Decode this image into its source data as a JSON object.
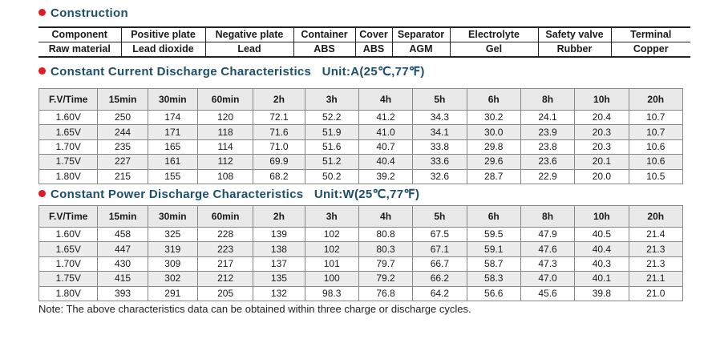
{
  "construction": {
    "title": "Construction",
    "headers": [
      "Component",
      "Positive plate",
      "Negative plate",
      "Container",
      "Cover",
      "Separator",
      "Electrolyte",
      "Safety valve",
      "Terminal"
    ],
    "row": [
      "Raw material",
      "Lead dioxide",
      "Lead",
      "ABS",
      "ABS",
      "AGM",
      "Gel",
      "Rubber",
      "Copper"
    ]
  },
  "current": {
    "title": "Constant Current Discharge Characteristics   Unit:A(25℃,77℉)",
    "headers": [
      "F.V/Time",
      "15min",
      "30min",
      "60min",
      "2h",
      "3h",
      "4h",
      "5h",
      "6h",
      "8h",
      "10h",
      "20h"
    ],
    "rows": [
      [
        "1.60V",
        "250",
        "174",
        "120",
        "72.1",
        "52.2",
        "41.2",
        "34.3",
        "30.2",
        "24.1",
        "20.4",
        "10.7"
      ],
      [
        "1.65V",
        "244",
        "171",
        "118",
        "71.6",
        "51.9",
        "41.0",
        "34.1",
        "30.0",
        "23.9",
        "20.3",
        "10.7"
      ],
      [
        "1.70V",
        "235",
        "165",
        "114",
        "71.0",
        "51.6",
        "40.7",
        "33.8",
        "29.8",
        "23.8",
        "20.3",
        "10.6"
      ],
      [
        "1.75V",
        "227",
        "161",
        "112",
        "69.9",
        "51.2",
        "40.4",
        "33.6",
        "29.6",
        "23.6",
        "20.1",
        "10.6"
      ],
      [
        "1.80V",
        "215",
        "155",
        "108",
        "68.2",
        "50.2",
        "39.2",
        "32.6",
        "28.7",
        "22.9",
        "20.0",
        "10.5"
      ]
    ]
  },
  "power": {
    "title": "Constant Power Discharge Characteristics   Unit:W(25℃,77℉)",
    "headers": [
      "F.V/Time",
      "15min",
      "30min",
      "60min",
      "2h",
      "3h",
      "4h",
      "5h",
      "6h",
      "8h",
      "10h",
      "20h"
    ],
    "rows": [
      [
        "1.60V",
        "458",
        "325",
        "228",
        "139",
        "102",
        "80.8",
        "67.5",
        "59.5",
        "47.9",
        "40.5",
        "21.4"
      ],
      [
        "1.65V",
        "447",
        "319",
        "223",
        "138",
        "102",
        "80.3",
        "67.1",
        "59.1",
        "47.6",
        "40.4",
        "21.3"
      ],
      [
        "1.70V",
        "430",
        "309",
        "217",
        "137",
        "101",
        "79.7",
        "66.7",
        "58.7",
        "47.3",
        "40.3",
        "21.3"
      ],
      [
        "1.75V",
        "415",
        "302",
        "212",
        "135",
        "100",
        "79.2",
        "66.2",
        "58.3",
        "47.0",
        "40.1",
        "21.1"
      ],
      [
        "1.80V",
        "393",
        "291",
        "205",
        "132",
        "98.3",
        "76.8",
        "64.2",
        "56.6",
        "45.6",
        "39.8",
        "21.0"
      ]
    ]
  },
  "note": "Note: The above characteristics data can be obtained within three charge or discharge cycles.",
  "colors": {
    "heading": "#1d4f6b",
    "bullet": "#e31b23",
    "header_bg": "#e8e8e8",
    "alt_row_bg": "#ececec"
  }
}
